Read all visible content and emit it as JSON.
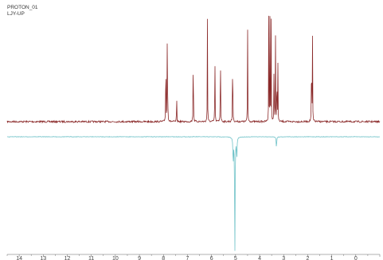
{
  "header": {
    "line1": "PROTON_01",
    "line2": "LJY-UP"
  },
  "chart_data": {
    "type": "line",
    "title": "",
    "xlabel": "",
    "ylabel": "",
    "x_axis": "ppm",
    "xlim": [
      14.5,
      -1.0
    ],
    "ticks": [
      14,
      13,
      12,
      11,
      10,
      9,
      8,
      7,
      6,
      5,
      4,
      3,
      2,
      1,
      0
    ],
    "colors": {
      "top": "#8b2a2a",
      "bottom": "#6fc2c8",
      "axis": "#666666"
    },
    "series": [
      {
        "baseline": 0,
        "peaks": [
          [
            7.9,
            1.0
          ],
          [
            7.84,
            0.9
          ],
          [
            7.82,
            0.35
          ],
          [
            7.45,
            0.3
          ],
          [
            6.76,
            1.0
          ],
          [
            6.17,
            1.0
          ],
          [
            5.86,
            0.8
          ],
          [
            5.63,
            1.0
          ],
          [
            5.12,
            1.0
          ],
          [
            4.5,
            1.0
          ],
          [
            3.62,
            1.0
          ],
          [
            3.57,
            1.0
          ],
          [
            3.52,
            1.0
          ],
          [
            3.4,
            0.75
          ],
          [
            3.34,
            0.85
          ],
          [
            3.28,
            0.7
          ],
          [
            3.24,
            0.55
          ],
          [
            1.84,
            1.0
          ],
          [
            1.8,
            0.85
          ]
        ]
      },
      {
        "baseline": 0,
        "peaks": [
          [
            5.03,
            -1.0
          ],
          [
            5.1,
            -0.22
          ],
          [
            4.95,
            -0.18
          ],
          [
            3.3,
            -0.1
          ]
        ]
      }
    ]
  }
}
